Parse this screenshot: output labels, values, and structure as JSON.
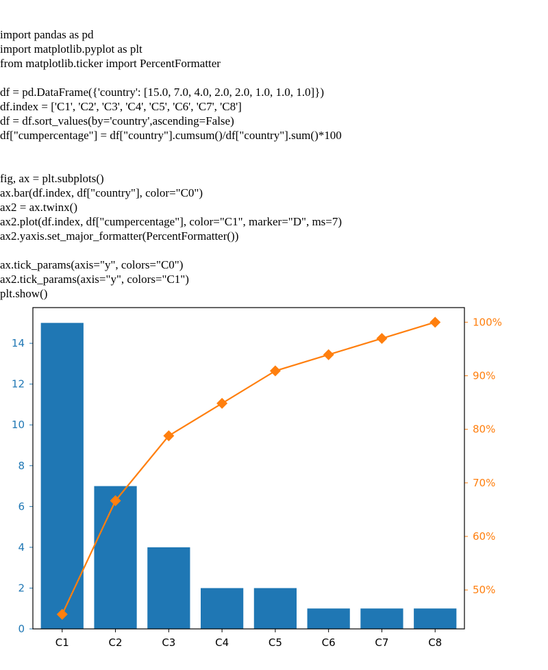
{
  "code_lines": [
    "import pandas as pd",
    "import matplotlib.pyplot as plt",
    "from matplotlib.ticker import PercentFormatter",
    "",
    "df = pd.DataFrame({'country': [15.0, 7.0, 4.0, 2.0, 2.0, 1.0, 1.0, 1.0]})",
    "df.index = ['C1', 'C2', 'C3', 'C4', 'C5', 'C6', 'C7', 'C8']",
    "df = df.sort_values(by='country',ascending=False)",
    "df[\"cumpercentage\"] = df[\"country\"].cumsum()/df[\"country\"].sum()*100",
    "",
    "",
    "fig, ax = plt.subplots()",
    "ax.bar(df.index, df[\"country\"], color=\"C0\")",
    "ax2 = ax.twinx()",
    "ax2.plot(df.index, df[\"cumpercentage\"], color=\"C1\", marker=\"D\", ms=7)",
    "ax2.yaxis.set_major_formatter(PercentFormatter())",
    "",
    "ax.tick_params(axis=\"y\", colors=\"C0\")",
    "ax2.tick_params(axis=\"y\", colors=\"C1\")",
    "plt.show()"
  ],
  "chart_data": {
    "type": "bar",
    "title": "",
    "xlabel": "",
    "ylabel": "",
    "categories": [
      "C1",
      "C2",
      "C3",
      "C4",
      "C5",
      "C6",
      "C7",
      "C8"
    ],
    "series": [
      {
        "name": "country",
        "type": "bar",
        "axis": "left",
        "color": "#1f77b4",
        "values": [
          15,
          7,
          4,
          2,
          2,
          1,
          1,
          1
        ]
      },
      {
        "name": "cumpercentage",
        "type": "line",
        "axis": "right",
        "marker": "diamond",
        "color": "#ff7f0e",
        "values": [
          45.45,
          66.67,
          78.79,
          84.85,
          90.91,
          93.94,
          96.97,
          100.0
        ]
      }
    ],
    "ylim": [
      0,
      15.75
    ],
    "yticks": [
      0,
      2,
      4,
      6,
      8,
      10,
      12,
      14
    ],
    "ytick_labels": [
      "0",
      "2",
      "4",
      "6",
      "8",
      "10",
      "12",
      "14"
    ],
    "y2lim": [
      42.73,
      102.73
    ],
    "y2ticks": [
      50,
      60,
      70,
      80,
      90,
      100
    ],
    "y2tick_labels": [
      "50%",
      "60%",
      "70%",
      "80%",
      "90%",
      "100%"
    ],
    "left_axis_color": "#1f77b4",
    "right_axis_color": "#ff7f0e",
    "grid": false,
    "legend": "none"
  }
}
